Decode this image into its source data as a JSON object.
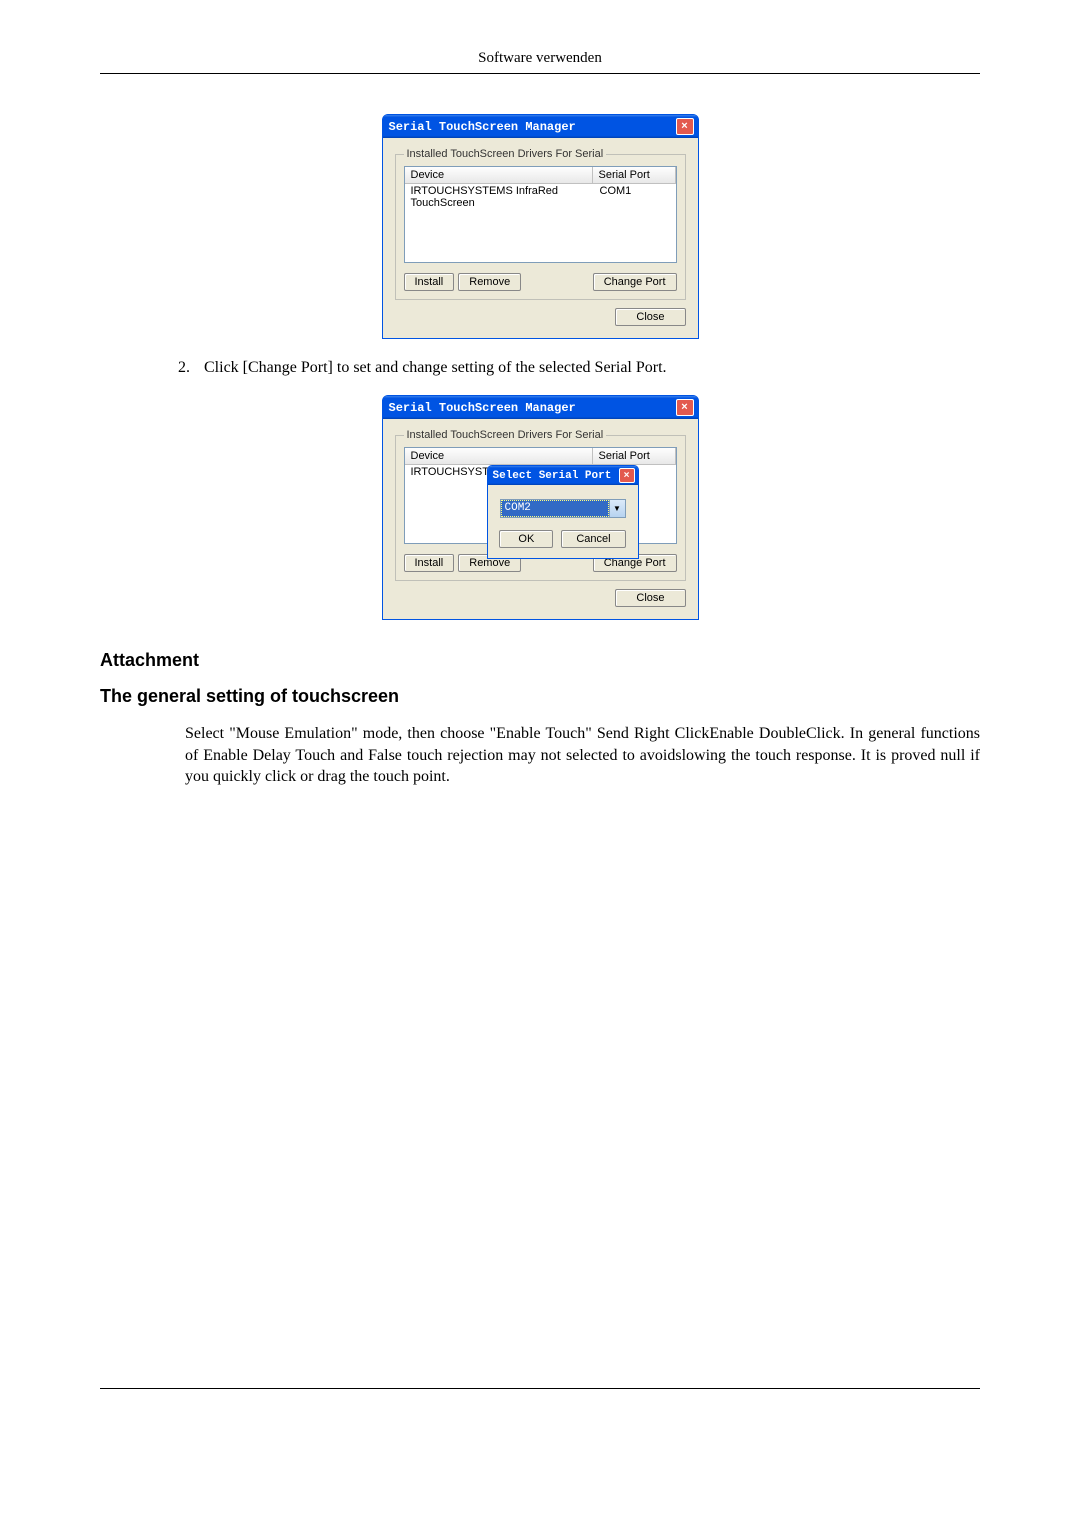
{
  "header": "Software verwenden",
  "window1": {
    "title": "Serial TouchScreen Manager",
    "groupbox": "Installed TouchScreen Drivers For Serial",
    "col_device": "Device",
    "col_port": "Serial Port",
    "row_device": "IRTOUCHSYSTEMS InfraRed TouchScreen",
    "row_port": "COM1",
    "install": "Install",
    "remove": "Remove",
    "changeport": "Change Port",
    "close": "Close"
  },
  "step2_num": "2.",
  "step2_text": "Click [Change Port] to set and change setting of the selected Serial Port.",
  "window2": {
    "title": "Serial TouchScreen Manager",
    "groupbox": "Installed TouchScreen Drivers For Serial",
    "col_device": "Device",
    "col_port": "Serial Port",
    "row_device": "IRTOUCHSYSTE",
    "row_port": "COM1",
    "install": "Install",
    "remove": "Remove",
    "changeport": "Change Port",
    "close": "Close",
    "popup_title": "Select Serial Port",
    "popup_value": "COM2",
    "ok": "OK",
    "cancel": "Cancel"
  },
  "heading1": "Attachment",
  "heading2": "The general setting of touchscreen",
  "paragraph": "Select \"Mouse Emulation\" mode, then choose \"Enable Touch\" Send Right ClickEnable DoubleClick. In general functions of Enable Delay Touch and False touch rejection may not selected to avoidslowing the touch response. It is proved null if you quickly click or drag the touch point."
}
